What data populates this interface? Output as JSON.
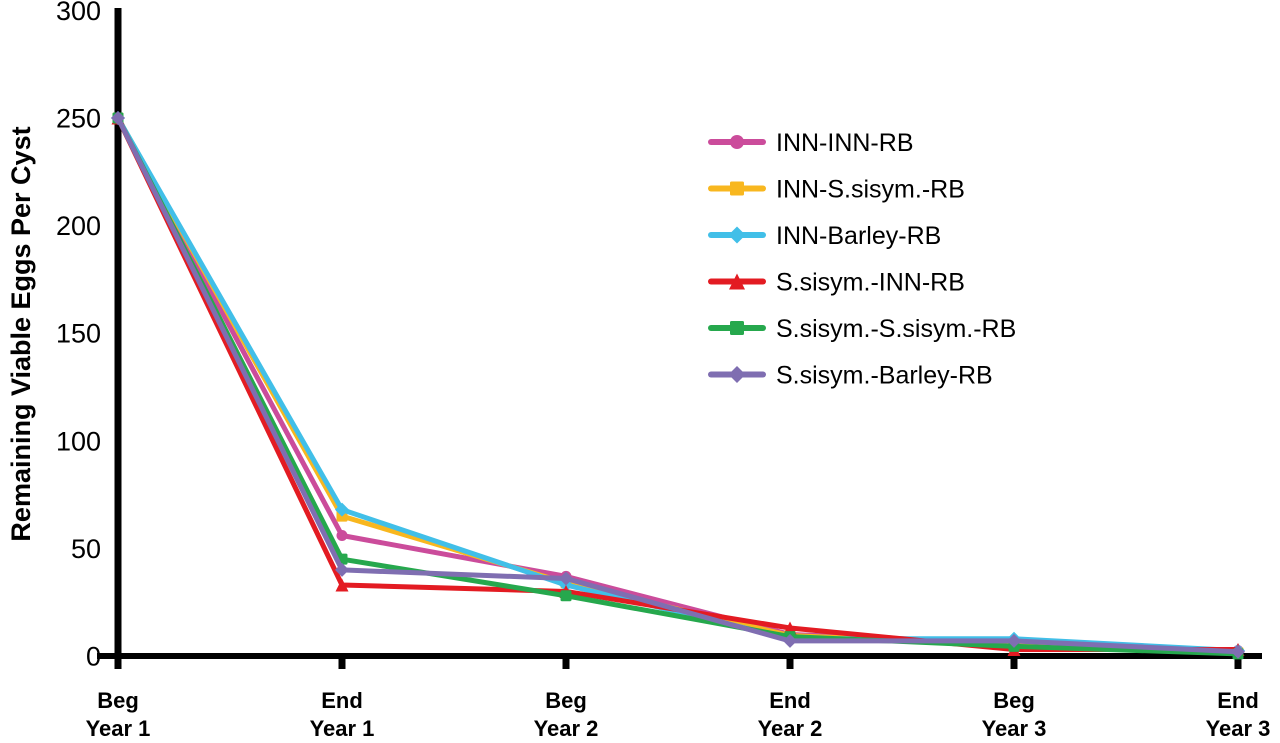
{
  "page": {
    "background_color": "#ffffff",
    "axis_color": "#000000",
    "text_color": "#000000"
  },
  "chart_data": {
    "type": "line",
    "title": "",
    "xlabel": "",
    "ylabel": "Remaining Viable Eggs Per Cyst",
    "ylim": [
      0,
      300
    ],
    "yticks": [
      0,
      50,
      100,
      150,
      200,
      250,
      300
    ],
    "categories": [
      "Beg Year 1",
      "End Year 1",
      "Beg Year 2",
      "End Year 2",
      "Beg Year 3",
      "End Year 3"
    ],
    "category_labels": [
      [
        "Beg",
        "Year 1"
      ],
      [
        "End",
        "Year 1"
      ],
      [
        "Beg",
        "Year 2"
      ],
      [
        "End",
        "Year 2"
      ],
      [
        "Beg",
        "Year 3"
      ],
      [
        "End",
        "Year 3"
      ]
    ],
    "grid": false,
    "legend_position": "inside-upper-right",
    "series": [
      {
        "name": "INN-INN-RB",
        "color": "#CB4C9B",
        "marker": "circle",
        "values": [
          250,
          56,
          37,
          10,
          6,
          2.5
        ]
      },
      {
        "name": "INN-S.sisym.-RB",
        "color": "#F8B71F",
        "marker": "square",
        "values": [
          250,
          65,
          34,
          9.5,
          5,
          1.5
        ]
      },
      {
        "name": "INN-Barley-RB",
        "color": "#41BFE8",
        "marker": "diamond",
        "values": [
          250,
          68,
          33,
          8,
          8,
          2.5
        ]
      },
      {
        "name": "S.sisym.-INN-RB",
        "color": "#E31B22",
        "marker": "triangle",
        "values": [
          250,
          33,
          30,
          13,
          3,
          3
        ]
      },
      {
        "name": "S.sisym.-S.sisym.-RB",
        "color": "#26A84D",
        "marker": "square",
        "values": [
          250,
          45,
          28,
          9,
          4.5,
          1
        ]
      },
      {
        "name": "S.sisym.-Barley-RB",
        "color": "#7F6EB1",
        "marker": "diamond",
        "values": [
          250,
          40,
          36,
          7,
          7,
          2
        ]
      }
    ]
  }
}
